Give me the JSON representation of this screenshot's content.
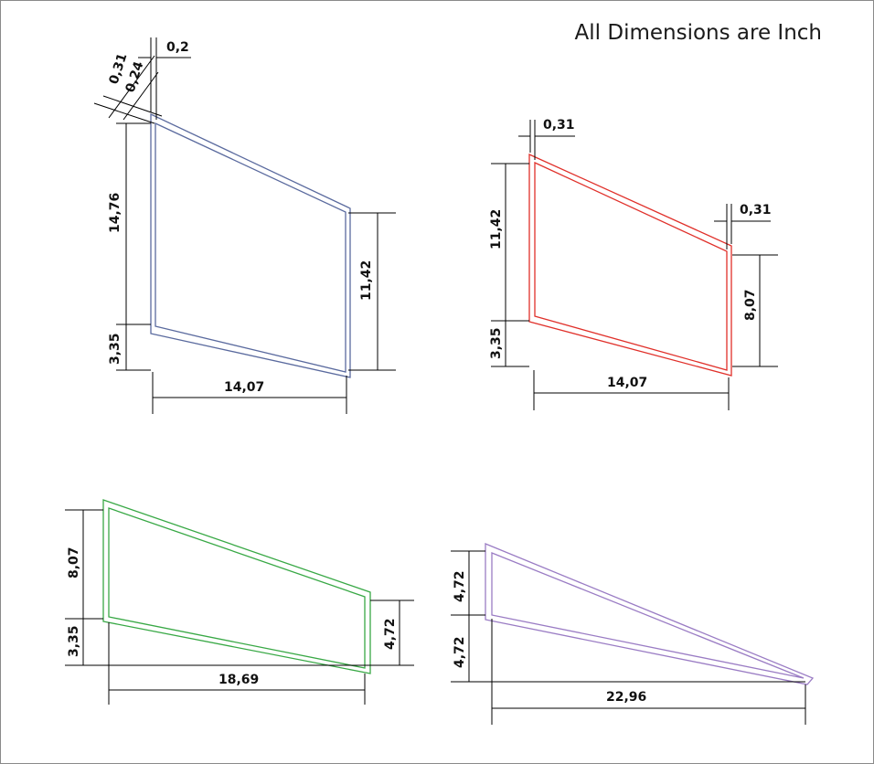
{
  "title": "All Dimensions are Inch",
  "colors": {
    "blue": "#5a6a9e",
    "red": "#e0302a",
    "green": "#38a845",
    "purple": "#9a7cc4"
  },
  "panels": [
    {
      "name": "blue-frame",
      "labels": {
        "top_offset": "0,2",
        "thickness_outer": "0,31",
        "thickness_inner": "0,24",
        "left_upper": "14,76",
        "left_lower": "3,35",
        "right_height": "11,42",
        "width": "14,07"
      }
    },
    {
      "name": "red-frame",
      "labels": {
        "left_thickness": "0,31",
        "right_thickness": "0,31",
        "left_upper": "11,42",
        "left_lower": "3,35",
        "right_height": "8,07",
        "width": "14,07"
      }
    },
    {
      "name": "green-frame",
      "labels": {
        "left_upper": "8,07",
        "left_lower": "3,35",
        "right_height": "4,72",
        "width": "18,69"
      }
    },
    {
      "name": "purple-frame",
      "labels": {
        "left_upper": "4,72",
        "left_lower": "4,72",
        "width": "22,96"
      }
    }
  ]
}
